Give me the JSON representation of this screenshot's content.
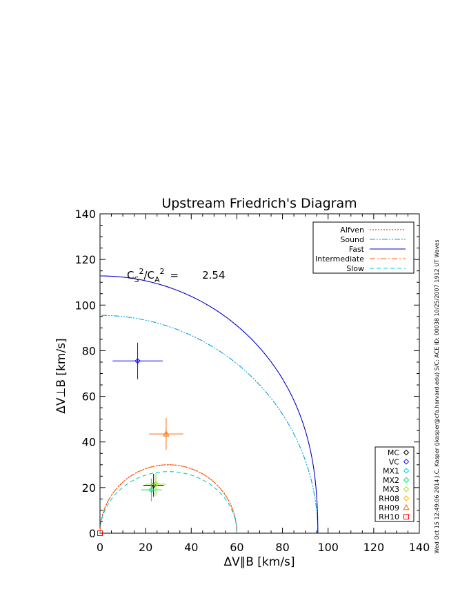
{
  "chart_data": {
    "type": "line",
    "title": "Upstream Friedrich's Diagram",
    "xlabel": "ΔV∥B [km/s]",
    "ylabel": "ΔV⊥B [km/s]",
    "xlim": [
      0,
      140
    ],
    "ylim": [
      0,
      140
    ],
    "xticks": [
      0,
      20,
      40,
      60,
      80,
      100,
      120,
      140
    ],
    "yticks": [
      0,
      20,
      40,
      60,
      80,
      100,
      120,
      140
    ],
    "annotation": {
      "cs": "C",
      "cs_sub": "S",
      "sup1": "2",
      "slash": "/C",
      "ca_sub": "A",
      "sup2": "2",
      "eq": "=",
      "value": "2.54"
    },
    "side_caption": "Wed Oct 15 12:49:06 2014   J.C. Kasper (jkasper@cfa.harvard.edu)   S/C: ACE ID: 00038 10/25/2007   1912 UT Waves",
    "legend_lines": [
      {
        "name": "Alfven",
        "color": "#ff0000",
        "dash": "2,2"
      },
      {
        "name": "Sound",
        "color": "#00a0e6",
        "dash": "8,2,2,2,2,2"
      },
      {
        "name": "Fast",
        "color": "#0000c8",
        "dash": ""
      },
      {
        "name": "Intermediate",
        "color": "#ff6400",
        "dash": "8,3,2,3"
      },
      {
        "name": "Slow",
        "color": "#00d2c8",
        "dash": "6,4"
      }
    ],
    "curves": {
      "alfven_speed": 60,
      "sound_speed": 95.5,
      "cs2_over_ca2": 2.54
    },
    "legend_points": [
      {
        "name": "MC",
        "marker": "diamond",
        "color": "#000000"
      },
      {
        "name": "VC",
        "marker": "diamond",
        "color": "#0000ff"
      },
      {
        "name": "MX1",
        "marker": "diamond",
        "color": "#00c8e6"
      },
      {
        "name": "MX2",
        "marker": "diamond",
        "color": "#00e664"
      },
      {
        "name": "MX3",
        "marker": "diamond",
        "color": "#96e600"
      },
      {
        "name": "RH08",
        "marker": "diamond",
        "color": "#ffb400"
      },
      {
        "name": "RH09",
        "marker": "triangle",
        "color": "#ff6400"
      },
      {
        "name": "RH10",
        "marker": "square",
        "color": "#ff0000"
      }
    ],
    "points": [
      {
        "name": "VC",
        "x": 16.5,
        "y": 75.5,
        "xerr": 11,
        "yerr": 8,
        "color": "#0000ff",
        "marker": "diamond"
      },
      {
        "name": "RH09",
        "x": 29,
        "y": 43.5,
        "xerr": 7.5,
        "yerr": 7,
        "color": "#ff6400",
        "marker": "triangle"
      },
      {
        "name": "MC",
        "x": 23.5,
        "y": 21,
        "xerr": 4.5,
        "yerr": 5,
        "color": "#000000",
        "marker": "diamond"
      },
      {
        "name": "MX2",
        "x": 22.5,
        "y": 19,
        "xerr": 4.5,
        "yerr": 5,
        "color": "#00e664",
        "marker": "diamond"
      },
      {
        "name": "MX3",
        "x": 24.5,
        "y": 21.5,
        "xerr": 4.5,
        "yerr": 5,
        "color": "#96e600",
        "marker": "diamond"
      },
      {
        "name": "RH10",
        "x": 0,
        "y": 0,
        "xerr": 0,
        "yerr": 0,
        "color": "#ff0000",
        "marker": "square"
      }
    ]
  }
}
